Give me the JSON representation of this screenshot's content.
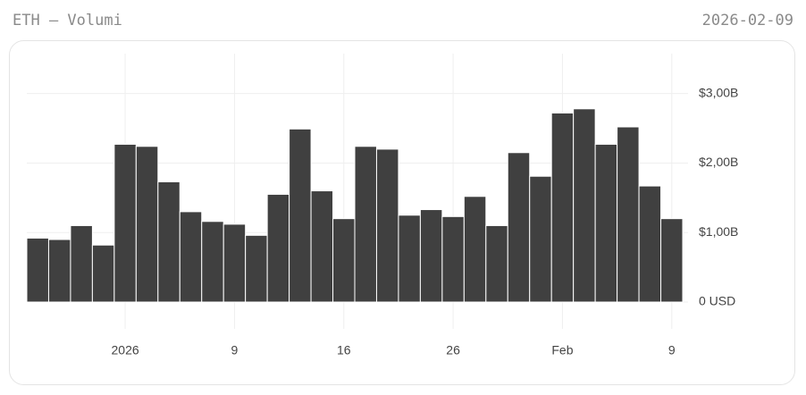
{
  "chart_data": {
    "type": "bar",
    "title": "ETH — Volumi",
    "subtitle": "2026-02-09",
    "categories": [
      null,
      null,
      null,
      null,
      "2026",
      null,
      null,
      null,
      null,
      "9",
      null,
      null,
      null,
      null,
      "16",
      null,
      null,
      null,
      null,
      "26",
      null,
      null,
      null,
      null,
      "Feb",
      null,
      null,
      null,
      null,
      "9"
    ],
    "values": [
      920000000,
      900000000,
      1100000000,
      820000000,
      2270000000,
      2240000000,
      1730000000,
      1300000000,
      1160000000,
      1120000000,
      960000000,
      1550000000,
      2490000000,
      1600000000,
      1200000000,
      2240000000,
      2200000000,
      1250000000,
      1330000000,
      1230000000,
      1520000000,
      1100000000,
      2150000000,
      1810000000,
      2720000000,
      2780000000,
      2270000000,
      2520000000,
      1670000000,
      1200000000
    ],
    "color": "#404040",
    "ylim": [
      0,
      3600000000
    ],
    "yticks": [
      {
        "value": 0,
        "label": "0 USD"
      },
      {
        "value": 1000000000,
        "label": "$1,00B"
      },
      {
        "value": 2000000000,
        "label": "$2,00B"
      },
      {
        "value": 3000000000,
        "label": "$3,00B"
      }
    ],
    "grid": true
  }
}
